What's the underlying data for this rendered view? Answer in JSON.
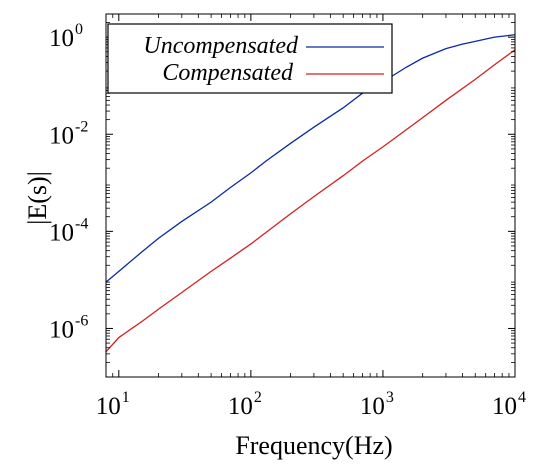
{
  "chart_data": {
    "type": "line",
    "title": "",
    "xlabel": "Frequency(Hz)",
    "ylabel": "|E(s)|",
    "xscale": "log",
    "yscale": "log",
    "xlim": [
      8,
      10000
    ],
    "ylim": [
      1e-07,
      3
    ],
    "grid": false,
    "legend_position": "top-left",
    "x_ticks": [
      {
        "value": 10,
        "base": "10",
        "exp": "1"
      },
      {
        "value": 100,
        "base": "10",
        "exp": "2"
      },
      {
        "value": 1000,
        "base": "10",
        "exp": "3"
      },
      {
        "value": 10000,
        "base": "10",
        "exp": "4"
      }
    ],
    "y_ticks": [
      {
        "value": 1,
        "base": "10",
        "exp": "0"
      },
      {
        "value": 0.01,
        "base": "10",
        "exp": "-2"
      },
      {
        "value": 0.0001,
        "base": "10",
        "exp": "-4"
      },
      {
        "value": 1e-06,
        "base": "10",
        "exp": "-6"
      }
    ],
    "series": [
      {
        "name": "Uncompensated",
        "color": "#0a2aa6",
        "points": [
          [
            8,
            9e-06
          ],
          [
            10,
            1.5e-05
          ],
          [
            15,
            3.8e-05
          ],
          [
            20,
            7.2e-05
          ],
          [
            30,
            0.00016
          ],
          [
            50,
            0.0004
          ],
          [
            70,
            0.0008
          ],
          [
            100,
            0.0016
          ],
          [
            130,
            0.0028
          ],
          [
            200,
            0.0065
          ],
          [
            300,
            0.014
          ],
          [
            500,
            0.035
          ],
          [
            700,
            0.07
          ],
          [
            1000,
            0.12
          ],
          [
            1500,
            0.24
          ],
          [
            2000,
            0.37
          ],
          [
            3000,
            0.58
          ],
          [
            4000,
            0.72
          ],
          [
            5000,
            0.82
          ],
          [
            7000,
            1.0
          ],
          [
            10000,
            1.12
          ]
        ]
      },
      {
        "name": "Compensated",
        "color": "#d42020",
        "points": [
          [
            8,
            3.3e-07
          ],
          [
            10,
            6.5e-07
          ],
          [
            15,
            1.4e-06
          ],
          [
            20,
            2.5e-06
          ],
          [
            30,
            5.5e-06
          ],
          [
            50,
            1.5e-05
          ],
          [
            70,
            2.8e-05
          ],
          [
            100,
            5.5e-05
          ],
          [
            200,
            0.00023
          ],
          [
            300,
            0.00052
          ],
          [
            500,
            0.0014
          ],
          [
            700,
            0.0028
          ],
          [
            1000,
            0.0055
          ],
          [
            2000,
            0.022
          ],
          [
            3000,
            0.05
          ],
          [
            5000,
            0.135
          ],
          [
            7000,
            0.27
          ],
          [
            10000,
            0.55
          ]
        ]
      }
    ]
  }
}
